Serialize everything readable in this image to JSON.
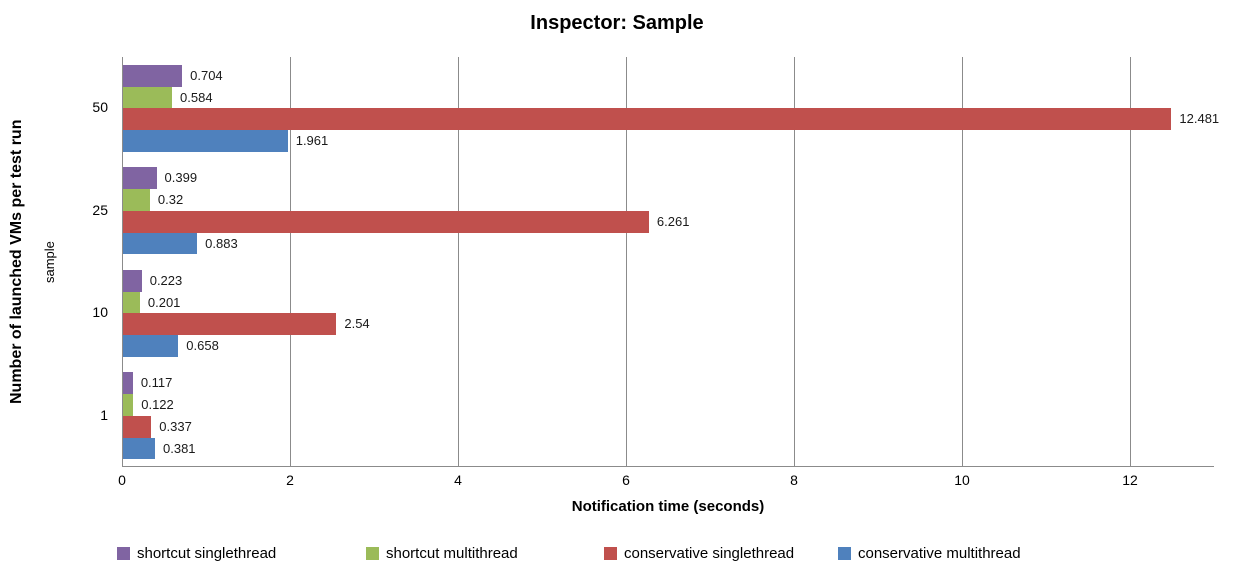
{
  "chart_data": {
    "type": "bar",
    "orientation": "horizontal",
    "title": "Inspector: Sample",
    "xlabel": "Notification time (seconds)",
    "ylabel": "Number of launched VMs per test run",
    "ylabel_secondary": "sample",
    "categories": [
      "50",
      "25",
      "10",
      "1"
    ],
    "series": [
      {
        "name": "shortcut singlethread",
        "color": "#8064A2",
        "values": [
          0.704,
          0.399,
          0.223,
          0.117
        ],
        "labels": [
          "0.704",
          "0.399",
          "0.223",
          "0.117"
        ]
      },
      {
        "name": "shortcut multithread",
        "color": "#9BBB59",
        "values": [
          0.584,
          0.32,
          0.201,
          0.122
        ],
        "labels": [
          "0.584",
          "0.32",
          "0.201",
          "0.122"
        ]
      },
      {
        "name": "conservative singlethread",
        "color": "#C0504D",
        "values": [
          12.481,
          6.261,
          2.54,
          0.337
        ],
        "labels": [
          "12.481",
          "6.261",
          "2.54",
          "0.337"
        ]
      },
      {
        "name": "conservative multithread",
        "color": "#4F81BD",
        "values": [
          1.961,
          0.883,
          0.658,
          0.381
        ],
        "labels": [
          "1.961",
          "0.883",
          "0.658",
          "0.381"
        ]
      }
    ],
    "xlim": [
      0,
      13
    ],
    "xticks": [
      0,
      2,
      4,
      6,
      8,
      10,
      12
    ],
    "grid": true,
    "legend_position": "bottom",
    "colors": {
      "gridline": "#8B8B8B",
      "axis_line": "#8B8B8B",
      "label_text": "#1a1a1a",
      "background": "#ffffff"
    }
  }
}
